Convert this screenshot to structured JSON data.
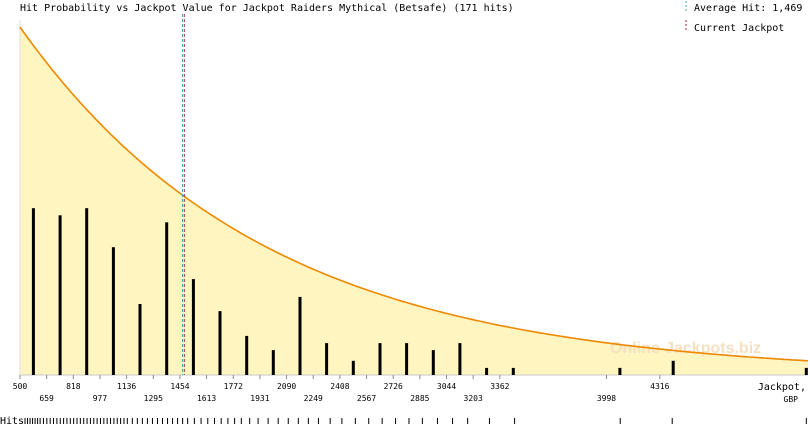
{
  "chart_data": {
    "type": "bar",
    "title": "Hit Probability vs Jackpot Value for Jackpot Raiders Mythical (Betsafe) (171 hits)",
    "legend": {
      "average_hit_label": "Average Hit: 1,469",
      "current_jackpot_label": "Current Jackpot"
    },
    "average_hit": 1469,
    "current_jackpot": 1480,
    "xlabel_line1": "Jackpot,",
    "xlabel_line2": "GBP",
    "hits_label": "Hits",
    "watermark": "Online-Jackpots.biz",
    "x_range": [
      500,
      5200
    ],
    "y_range": [
      0,
      1
    ],
    "ticks_upper": [
      "500",
      "818",
      "1136",
      "1454",
      "1772",
      "2090",
      "2408",
      "2726",
      "3044",
      "3362",
      "4316"
    ],
    "ticks_lower": [
      "659",
      "977",
      "1295",
      "1613",
      "1931",
      "2249",
      "2567",
      "2885",
      "3203",
      "3998"
    ],
    "bars": [
      {
        "x": 580,
        "value": 0.47
      },
      {
        "x": 739,
        "value": 0.45
      },
      {
        "x": 898,
        "value": 0.47
      },
      {
        "x": 1057,
        "value": 0.36
      },
      {
        "x": 1216,
        "value": 0.2
      },
      {
        "x": 1375,
        "value": 0.43
      },
      {
        "x": 1534,
        "value": 0.27
      },
      {
        "x": 1693,
        "value": 0.18
      },
      {
        "x": 1852,
        "value": 0.11
      },
      {
        "x": 2011,
        "value": 0.07
      },
      {
        "x": 2170,
        "value": 0.22
      },
      {
        "x": 2329,
        "value": 0.09
      },
      {
        "x": 2488,
        "value": 0.04
      },
      {
        "x": 2647,
        "value": 0.09
      },
      {
        "x": 2806,
        "value": 0.09
      },
      {
        "x": 2965,
        "value": 0.07
      },
      {
        "x": 3124,
        "value": 0.09
      },
      {
        "x": 3283,
        "value": 0.02
      },
      {
        "x": 3442,
        "value": 0.02
      },
      {
        "x": 4078,
        "value": 0.02
      },
      {
        "x": 4396,
        "value": 0.04
      },
      {
        "x": 5190,
        "value": 0.02
      }
    ],
    "hits": [
      530,
      545,
      560,
      575,
      590,
      605,
      620,
      640,
      660,
      680,
      700,
      720,
      740,
      760,
      780,
      800,
      820,
      840,
      860,
      880,
      900,
      920,
      940,
      960,
      980,
      1000,
      1020,
      1040,
      1060,
      1080,
      1100,
      1120,
      1140,
      1170,
      1200,
      1230,
      1260,
      1290,
      1320,
      1350,
      1380,
      1410,
      1440,
      1470,
      1500,
      1540,
      1580,
      1620,
      1660,
      1700,
      1740,
      1780,
      1820,
      1870,
      1920,
      1980,
      2040,
      2100,
      2160,
      2220,
      2280,
      2350,
      2420,
      2500,
      2580,
      2660,
      2740,
      2820,
      2900,
      2990,
      3080,
      3170,
      3300,
      3450,
      4080,
      4390,
      5190
    ],
    "curve": {
      "kind": "exponential-decay",
      "start": 0.98,
      "end": 0.04
    }
  }
}
